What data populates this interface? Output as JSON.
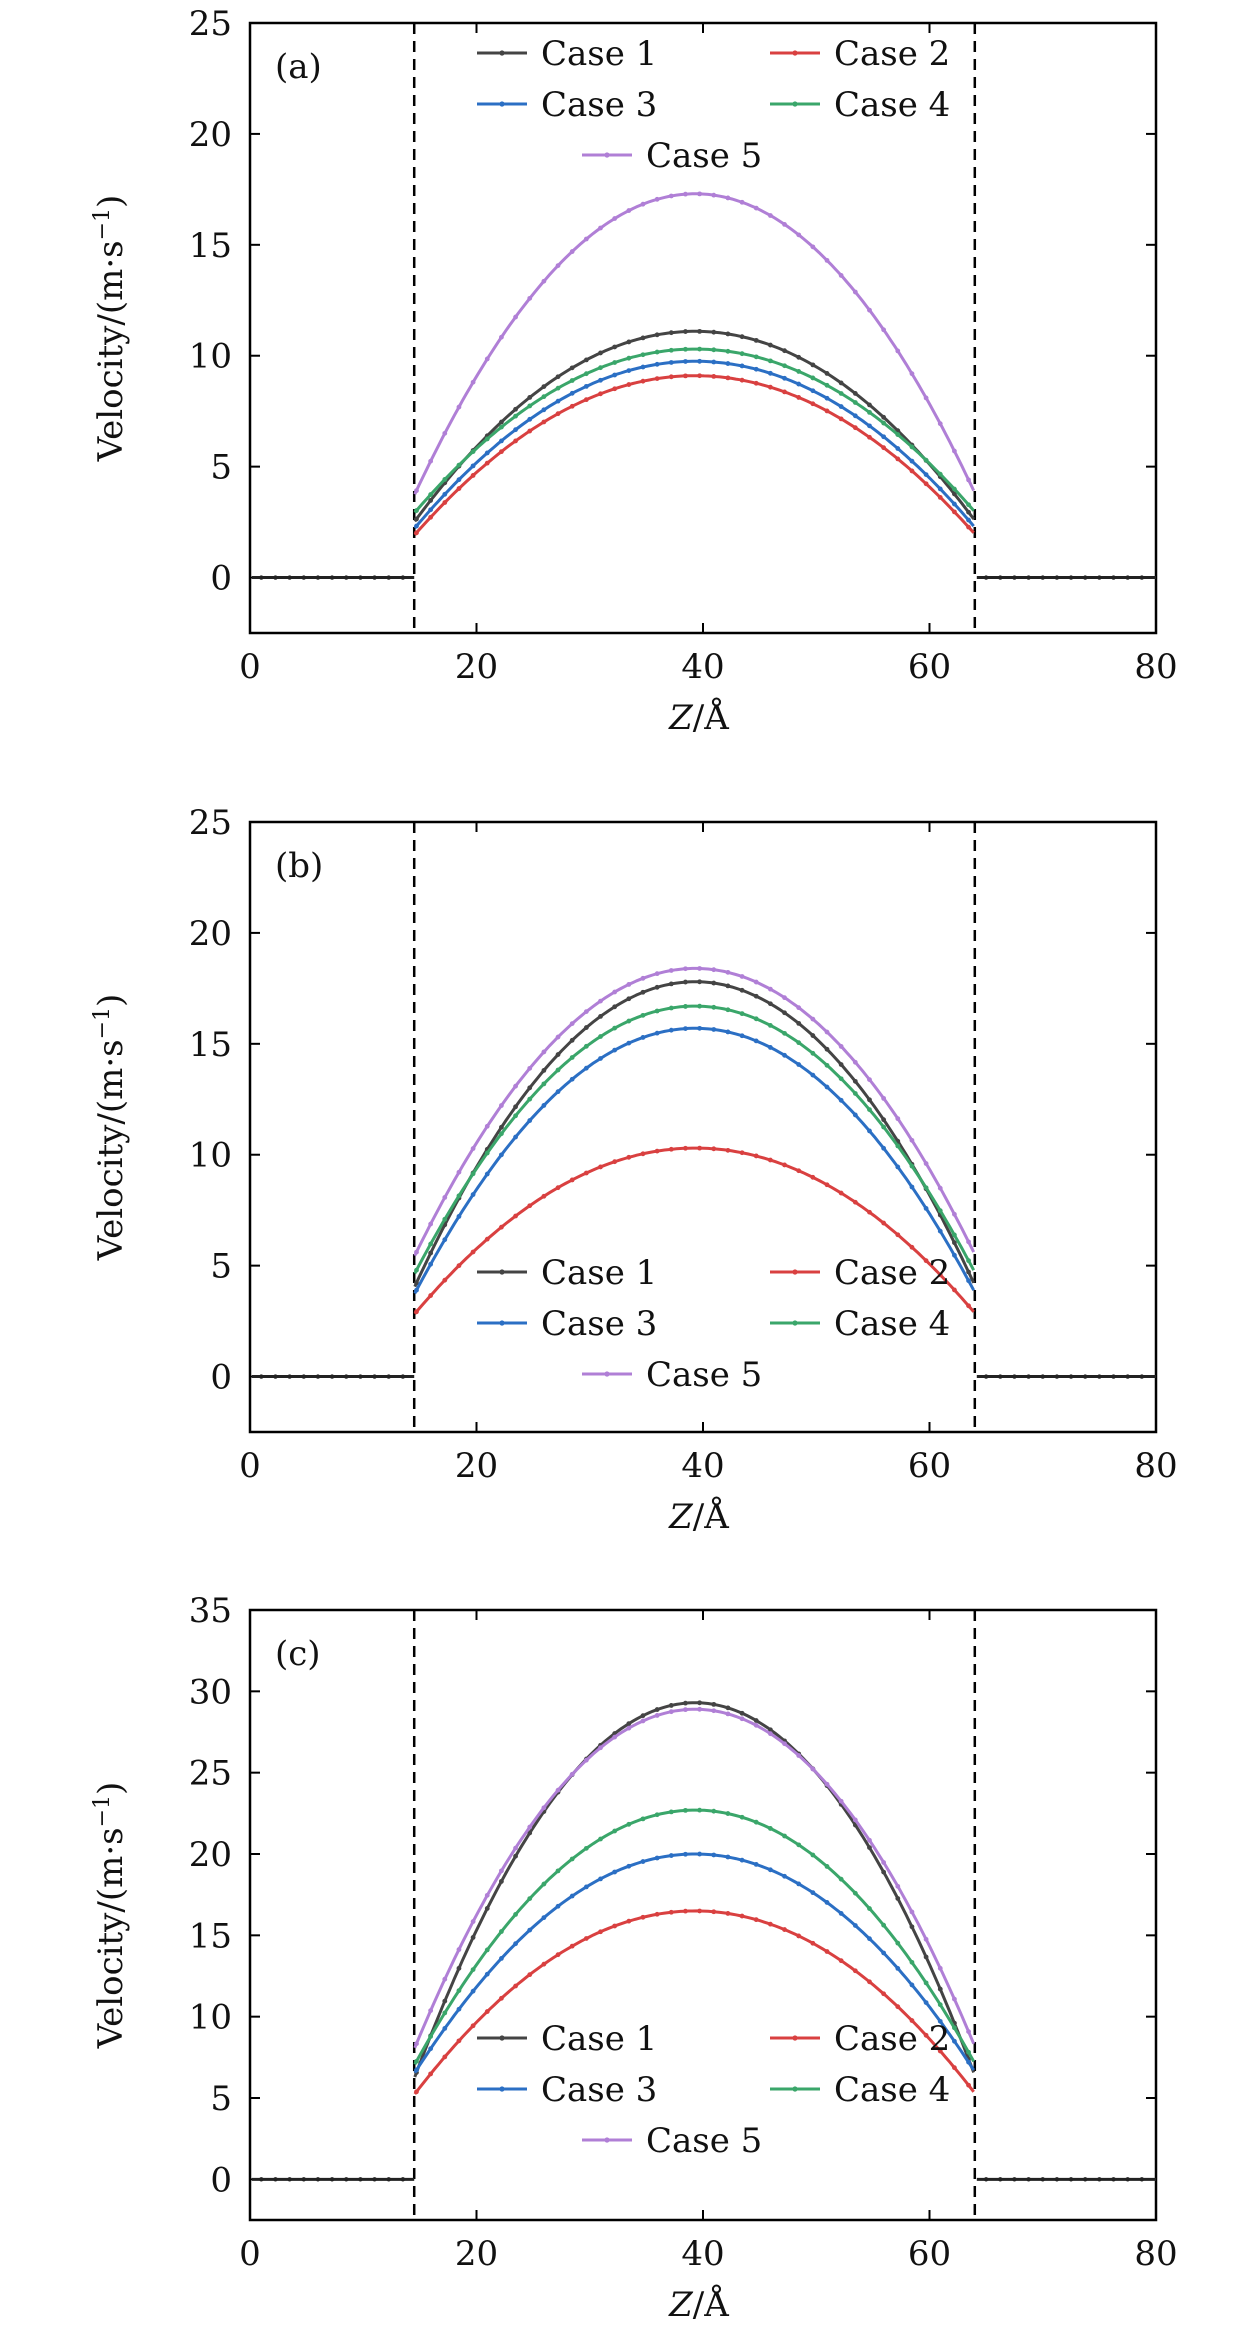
{
  "chart_data": [
    {
      "type": "line",
      "panel_label": "(a)",
      "xlabel_var": "Z",
      "xlabel_unit": "/Å",
      "ylabel": "Velocity/(m·s",
      "ylabel_exp": "−1",
      "ylabel_close": ")",
      "xlim": [
        0,
        80
      ],
      "ylim": [
        -2.5,
        25
      ],
      "xticks": [
        "0",
        "20",
        "40",
        "60",
        "80"
      ],
      "yticks": [
        "0",
        "5",
        "10",
        "15",
        "20",
        "25"
      ],
      "walls": [
        14.5,
        64
      ],
      "legend_position": "top",
      "series": [
        {
          "name": "Case 1",
          "color": "#444444",
          "wall_value": 2.5,
          "peak": 11.1,
          "peak_x": 39.3
        },
        {
          "name": "Case 2",
          "color": "#d94040",
          "wall_value": 1.9,
          "peak": 9.1,
          "peak_x": 39.3
        },
        {
          "name": "Case 3",
          "color": "#2b6fc4",
          "wall_value": 2.2,
          "peak": 9.75,
          "peak_x": 39.3
        },
        {
          "name": "Case 4",
          "color": "#3aa66a",
          "wall_value": 2.9,
          "peak": 10.3,
          "peak_x": 39.3
        },
        {
          "name": "Case 5",
          "color": "#b07fd6",
          "wall_value": 3.7,
          "peak": 17.3,
          "peak_x": 39.3
        }
      ]
    },
    {
      "type": "line",
      "panel_label": "(b)",
      "xlabel_var": "Z",
      "xlabel_unit": "/Å",
      "ylabel": "Velocity/(m·s",
      "ylabel_exp": "−1",
      "ylabel_close": ")",
      "xlim": [
        0,
        80
      ],
      "ylim": [
        -2.5,
        25
      ],
      "xticks": [
        "0",
        "20",
        "40",
        "60",
        "80"
      ],
      "yticks": [
        "0",
        "5",
        "10",
        "15",
        "20",
        "25"
      ],
      "walls": [
        14.5,
        64
      ],
      "legend_position": "bottom",
      "series": [
        {
          "name": "Case 1",
          "color": "#444444",
          "wall_value": 4.0,
          "peak": 17.8,
          "peak_x": 39.3
        },
        {
          "name": "Case 2",
          "color": "#d94040",
          "wall_value": 2.8,
          "peak": 10.3,
          "peak_x": 39.3
        },
        {
          "name": "Case 3",
          "color": "#2b6fc4",
          "wall_value": 3.7,
          "peak": 15.7,
          "peak_x": 39.3
        },
        {
          "name": "Case 4",
          "color": "#3aa66a",
          "wall_value": 4.6,
          "peak": 16.7,
          "peak_x": 39.3
        },
        {
          "name": "Case 5",
          "color": "#b07fd6",
          "wall_value": 5.4,
          "peak": 18.4,
          "peak_x": 39.3
        }
      ]
    },
    {
      "type": "line",
      "panel_label": "(c)",
      "xlabel_var": "Z",
      "xlabel_unit": "/Å",
      "ylabel": "Velocity/(m·s",
      "ylabel_exp": "−1",
      "ylabel_close": ")",
      "xlim": [
        0,
        80
      ],
      "ylim": [
        -2.5,
        35
      ],
      "xticks": [
        "0",
        "20",
        "40",
        "60",
        "80"
      ],
      "yticks": [
        "0",
        "5",
        "10",
        "15",
        "20",
        "25",
        "30",
        "35"
      ],
      "walls": [
        14.5,
        64
      ],
      "legend_position": "bottom",
      "series": [
        {
          "name": "Case 1",
          "color": "#444444",
          "wall_value": 6.2,
          "peak": 29.3,
          "peak_x": 39.3
        },
        {
          "name": "Case 2",
          "color": "#d94040",
          "wall_value": 5.2,
          "peak": 16.5,
          "peak_x": 39.3
        },
        {
          "name": "Case 3",
          "color": "#2b6fc4",
          "wall_value": 6.5,
          "peak": 20.0,
          "peak_x": 39.3
        },
        {
          "name": "Case 4",
          "color": "#3aa66a",
          "wall_value": 7.0,
          "peak": 22.7,
          "peak_x": 39.3
        },
        {
          "name": "Case 5",
          "color": "#b07fd6",
          "wall_value": 8.0,
          "peak": 28.9,
          "peak_x": 39.3
        }
      ]
    }
  ]
}
